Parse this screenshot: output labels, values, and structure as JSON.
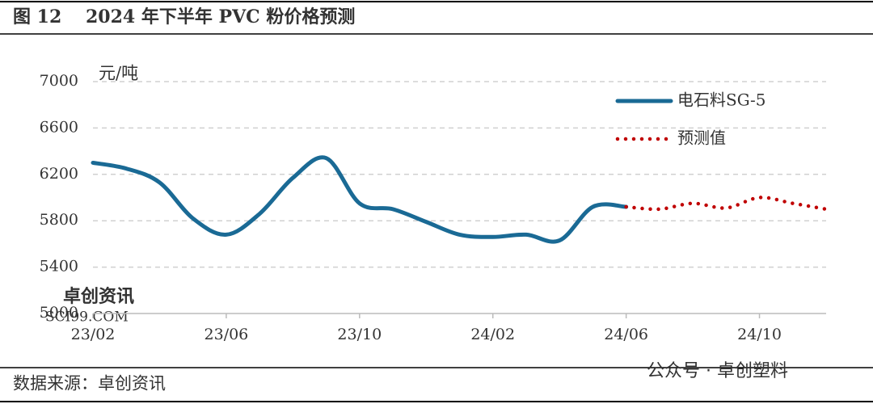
{
  "chart_data": {
    "type": "line",
    "figure_label": "图 12",
    "title": "2024 年下半年 PVC 粉价格预测",
    "y_unit": "元/吨",
    "source": "数据来源：卓创资讯",
    "watermarks": [
      "卓创资讯",
      "SCI99.COM",
      "公众号 · 卓创塑料"
    ],
    "categories": [
      "23/02",
      null,
      null,
      null,
      "23/06",
      null,
      null,
      null,
      "23/10",
      null,
      null,
      null,
      "24/02",
      null,
      null,
      null,
      "24/06",
      null,
      null,
      null,
      "24/10",
      null,
      null
    ],
    "series": [
      {
        "name": "电石料SG-5",
        "color": "#1a6a95",
        "style": "solid",
        "values": [
          6300,
          6250,
          6130,
          5820,
          5680,
          5860,
          6170,
          6340,
          5950,
          5900,
          5790,
          5680,
          5660,
          5680,
          5630,
          5920,
          5920,
          null,
          null,
          null,
          null,
          null,
          null
        ]
      },
      {
        "name": "预测值",
        "color": "#c00000",
        "style": "dotted",
        "values": [
          null,
          null,
          null,
          null,
          null,
          null,
          null,
          null,
          null,
          null,
          null,
          null,
          null,
          null,
          null,
          null,
          5920,
          5900,
          5950,
          5910,
          6000,
          5950,
          5900
        ]
      }
    ],
    "ylim": [
      5000,
      7000
    ],
    "yticks": [
      5000,
      5400,
      5800,
      6200,
      6600,
      7000
    ],
    "grid": true,
    "legend": "upper right"
  }
}
